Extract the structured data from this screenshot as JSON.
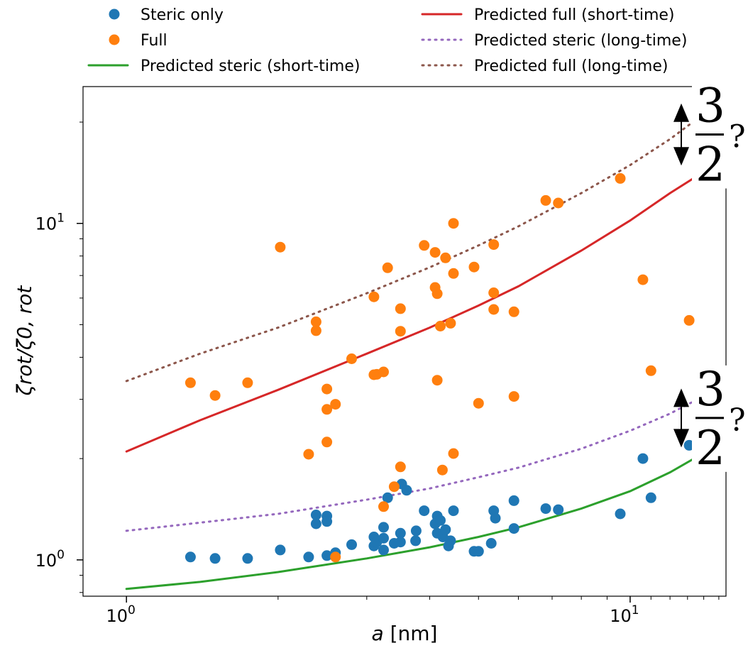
{
  "chart_data": {
    "type": "scatter",
    "xscale": "log",
    "yscale": "log",
    "xlim": [
      0.82,
      15.5
    ],
    "ylim": [
      0.78,
      25.5
    ],
    "xlabel_italic": "a",
    "xlabel_rest": " [nm]",
    "ylabel": "ζrot/ζ0, rot",
    "x_ticks": [
      {
        "value": 1,
        "base": "10",
        "exp": "0"
      },
      {
        "value": 10,
        "base": "10",
        "exp": "1"
      }
    ],
    "y_ticks": [
      {
        "value": 1,
        "base": "10",
        "exp": "0"
      },
      {
        "value": 10,
        "base": "10",
        "exp": "1"
      }
    ],
    "legend": {
      "placement": "above",
      "entries": [
        {
          "label": "Steric only",
          "kind": "marker",
          "color": "#1f77b4"
        },
        {
          "label": "Full",
          "kind": "marker",
          "color": "#ff7f0e"
        },
        {
          "label": "Predicted steric (short-time)",
          "kind": "line",
          "color": "#2ca02c"
        },
        {
          "label": "Predicted full (short-time)",
          "kind": "line",
          "color": "#d62728"
        },
        {
          "label": "Predicted steric (long-time)",
          "kind": "dotted",
          "color": "#9467bd"
        },
        {
          "label": "Predicted full (long-time)",
          "kind": "dotted",
          "color": "#8c564b"
        }
      ]
    },
    "series": [
      {
        "name": "Steric only",
        "kind": "scatter",
        "color": "#1f77b4",
        "points": [
          [
            1.34,
            1.02
          ],
          [
            1.5,
            1.01
          ],
          [
            1.74,
            1.01
          ],
          [
            2.02,
            1.07
          ],
          [
            2.3,
            1.02
          ],
          [
            2.38,
            1.36
          ],
          [
            2.38,
            1.28
          ],
          [
            2.5,
            1.35
          ],
          [
            2.5,
            1.3
          ],
          [
            2.5,
            1.03
          ],
          [
            2.6,
            1.05
          ],
          [
            2.8,
            1.11
          ],
          [
            3.1,
            1.1
          ],
          [
            3.1,
            1.17
          ],
          [
            3.14,
            1.13
          ],
          [
            3.24,
            1.25
          ],
          [
            3.24,
            1.16
          ],
          [
            3.24,
            1.07
          ],
          [
            3.3,
            1.53
          ],
          [
            3.4,
            1.12
          ],
          [
            3.5,
            1.2
          ],
          [
            3.5,
            1.13
          ],
          [
            3.52,
            1.68
          ],
          [
            3.6,
            1.61
          ],
          [
            3.75,
            1.14
          ],
          [
            3.76,
            1.22
          ],
          [
            3.9,
            1.4
          ],
          [
            4.1,
            1.28
          ],
          [
            4.14,
            1.2
          ],
          [
            4.14,
            1.35
          ],
          [
            4.2,
            1.31
          ],
          [
            4.25,
            1.17
          ],
          [
            4.3,
            1.23
          ],
          [
            4.36,
            1.1
          ],
          [
            4.4,
            1.14
          ],
          [
            4.46,
            1.4
          ],
          [
            4.9,
            1.06
          ],
          [
            5.0,
            1.06
          ],
          [
            5.3,
            1.12
          ],
          [
            5.36,
            1.4
          ],
          [
            5.4,
            1.33
          ],
          [
            5.88,
            1.5
          ],
          [
            5.88,
            1.24
          ],
          [
            6.8,
            1.42
          ],
          [
            7.2,
            1.41
          ],
          [
            9.56,
            1.37
          ],
          [
            10.6,
            2.0
          ],
          [
            11.0,
            1.53
          ],
          [
            13.1,
            2.19
          ]
        ]
      },
      {
        "name": "Full",
        "kind": "scatter",
        "color": "#ff7f0e",
        "points": [
          [
            1.34,
            3.36
          ],
          [
            1.5,
            3.08
          ],
          [
            1.74,
            3.36
          ],
          [
            2.02,
            8.5
          ],
          [
            2.3,
            2.06
          ],
          [
            2.38,
            5.1
          ],
          [
            2.38,
            4.8
          ],
          [
            2.5,
            3.22
          ],
          [
            2.5,
            2.8
          ],
          [
            2.5,
            2.24
          ],
          [
            2.6,
            2.9
          ],
          [
            2.8,
            3.96
          ],
          [
            3.1,
            3.55
          ],
          [
            3.1,
            6.05
          ],
          [
            3.14,
            3.56
          ],
          [
            3.24,
            3.62
          ],
          [
            3.24,
            1.44
          ],
          [
            3.3,
            7.38
          ],
          [
            3.4,
            1.65
          ],
          [
            3.5,
            5.58
          ],
          [
            3.5,
            4.78
          ],
          [
            3.5,
            1.89
          ],
          [
            3.9,
            8.6
          ],
          [
            4.1,
            8.2
          ],
          [
            4.1,
            6.45
          ],
          [
            4.14,
            6.18
          ],
          [
            4.2,
            4.95
          ],
          [
            4.3,
            7.9
          ],
          [
            4.4,
            5.05
          ],
          [
            4.46,
            7.1
          ],
          [
            4.46,
            10.0
          ],
          [
            4.46,
            2.07
          ],
          [
            4.9,
            7.42
          ],
          [
            5.0,
            2.92
          ],
          [
            5.36,
            8.65
          ],
          [
            5.36,
            6.22
          ],
          [
            5.36,
            5.55
          ],
          [
            5.88,
            5.46
          ],
          [
            5.88,
            3.06
          ],
          [
            6.8,
            11.7
          ],
          [
            7.2,
            11.5
          ],
          [
            9.56,
            13.6
          ],
          [
            10.6,
            6.8
          ],
          [
            11.0,
            3.65
          ],
          [
            13.1,
            5.15
          ],
          [
            4.14,
            3.42
          ],
          [
            4.24,
            1.85
          ],
          [
            2.6,
            1.02
          ]
        ]
      },
      {
        "name": "Predicted steric (short-time)",
        "kind": "line",
        "color": "#2ca02c",
        "dash": "",
        "points": [
          [
            1,
            0.82
          ],
          [
            1.4,
            0.86
          ],
          [
            2,
            0.92
          ],
          [
            3,
            1.01
          ],
          [
            4,
            1.09
          ],
          [
            5,
            1.17
          ],
          [
            6,
            1.25
          ],
          [
            8,
            1.42
          ],
          [
            10,
            1.6
          ],
          [
            12,
            1.82
          ],
          [
            14.8,
            2.18
          ]
        ]
      },
      {
        "name": "Predicted full (short-time)",
        "kind": "line",
        "color": "#d62728",
        "dash": "",
        "points": [
          [
            1,
            2.1
          ],
          [
            1.4,
            2.6
          ],
          [
            2,
            3.2
          ],
          [
            3,
            4.1
          ],
          [
            4,
            4.9
          ],
          [
            5,
            5.7
          ],
          [
            6,
            6.5
          ],
          [
            8,
            8.3
          ],
          [
            10,
            10.2
          ],
          [
            12,
            12.3
          ],
          [
            14.8,
            15.0
          ]
        ]
      },
      {
        "name": "Predicted steric (long-time)",
        "kind": "line",
        "color": "#9467bd",
        "dash": "2 7",
        "points": [
          [
            1,
            1.22
          ],
          [
            1.4,
            1.29
          ],
          [
            2,
            1.37
          ],
          [
            3,
            1.51
          ],
          [
            4,
            1.63
          ],
          [
            5,
            1.76
          ],
          [
            6,
            1.88
          ],
          [
            8,
            2.14
          ],
          [
            10,
            2.42
          ],
          [
            12,
            2.72
          ],
          [
            14.8,
            3.2
          ]
        ]
      },
      {
        "name": "Predicted full (long-time)",
        "kind": "line",
        "color": "#8c564b",
        "dash": "2 7",
        "points": [
          [
            1,
            3.4
          ],
          [
            1.4,
            4.1
          ],
          [
            2,
            4.9
          ],
          [
            3,
            6.2
          ],
          [
            4,
            7.4
          ],
          [
            5,
            8.6
          ],
          [
            6,
            9.8
          ],
          [
            8,
            12.3
          ],
          [
            10,
            14.9
          ],
          [
            12,
            17.8
          ],
          [
            14.8,
            22.5
          ]
        ]
      }
    ],
    "annotations": [
      {
        "numerator": "3",
        "denominator": "2",
        "mark": "?",
        "x": 14.8,
        "y_top": 22.5,
        "y_bottom": 15.0
      },
      {
        "numerator": "3",
        "denominator": "2",
        "mark": "?",
        "x": 14.8,
        "y_top": 3.2,
        "y_bottom": 2.18
      }
    ]
  }
}
